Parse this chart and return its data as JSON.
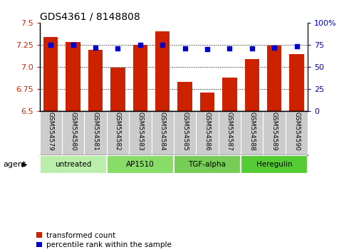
{
  "title": "GDS4361 / 8148808",
  "samples": [
    "GSM554579",
    "GSM554580",
    "GSM554581",
    "GSM554582",
    "GSM554583",
    "GSM554584",
    "GSM554585",
    "GSM554586",
    "GSM554587",
    "GSM554588",
    "GSM554589",
    "GSM554590"
  ],
  "bar_values": [
    7.34,
    7.28,
    7.19,
    6.99,
    7.25,
    7.4,
    6.83,
    6.71,
    6.88,
    7.09,
    7.24,
    7.14
  ],
  "scatter_values": [
    75,
    75,
    72,
    71,
    75,
    75,
    71,
    70,
    71,
    71,
    72,
    73
  ],
  "bar_color": "#cc2200",
  "scatter_color": "#0000cc",
  "ylim": [
    6.5,
    7.5
  ],
  "ylim_right": [
    0,
    100
  ],
  "yticks_left": [
    6.5,
    6.75,
    7.0,
    7.25,
    7.5
  ],
  "yticks_right": [
    0,
    25,
    50,
    75,
    100
  ],
  "ytick_labels_right": [
    "0",
    "25",
    "50",
    "75",
    "100%"
  ],
  "gridlines": [
    6.75,
    7.0,
    7.25
  ],
  "agents": [
    {
      "label": "untreated",
      "start": 0,
      "end": 3,
      "color": "#bbeeaa"
    },
    {
      "label": "AP1510",
      "start": 3,
      "end": 6,
      "color": "#88dd66"
    },
    {
      "label": "TGF-alpha",
      "start": 6,
      "end": 9,
      "color": "#77cc55"
    },
    {
      "label": "Heregulin",
      "start": 9,
      "end": 12,
      "color": "#55cc33"
    }
  ],
  "legend_bar_label": "transformed count",
  "legend_scatter_label": "percentile rank within the sample",
  "agent_label": "agent",
  "label_bg": "#cccccc",
  "label_divider": "#ffffff"
}
